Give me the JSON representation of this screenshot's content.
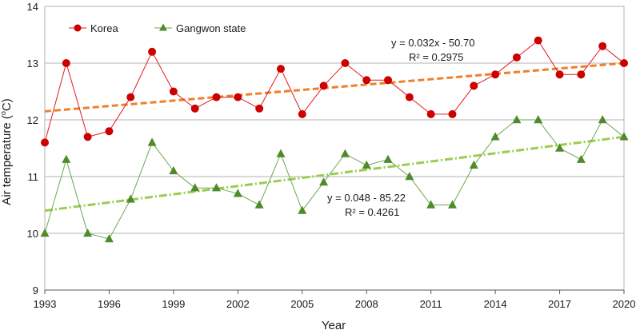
{
  "chart_data": {
    "type": "line",
    "xlabel": "Year",
    "ylabel": "Air temperature (",
    "ylabel_sup": "o",
    "ylabel_end": "C)",
    "xlim": [
      1993,
      2020
    ],
    "ylim": [
      9,
      14
    ],
    "xticks": [
      1993,
      1996,
      1999,
      2002,
      2005,
      2008,
      2011,
      2014,
      2017,
      2020
    ],
    "yticks": [
      9,
      10,
      11,
      12,
      13,
      14
    ],
    "grid": "horizontal",
    "legend_position": "top-left",
    "x": [
      1993,
      1994,
      1995,
      1996,
      1997,
      1998,
      1999,
      2000,
      2001,
      2002,
      2003,
      2004,
      2005,
      2006,
      2007,
      2008,
      2009,
      2010,
      2011,
      2012,
      2013,
      2014,
      2015,
      2016,
      2017,
      2018,
      2019,
      2020
    ],
    "series": [
      {
        "name": "Korea",
        "marker": "circle",
        "color": "#e31a1c",
        "marker_color": "#cc0000",
        "values": [
          11.6,
          13.0,
          11.7,
          11.8,
          12.4,
          13.2,
          12.5,
          12.2,
          12.4,
          12.4,
          12.2,
          12.9,
          12.1,
          12.6,
          13.0,
          12.7,
          12.7,
          12.4,
          12.1,
          12.1,
          12.6,
          12.8,
          13.1,
          13.4,
          12.8,
          12.8,
          13.3,
          13.0
        ],
        "trend": {
          "color": "#f07f2a",
          "style": "dashed",
          "start": [
            1993,
            12.15
          ],
          "end": [
            2020,
            13.0
          ],
          "equation": "y = 0.032x - 50.70",
          "r2": "R² = 0.2975"
        }
      },
      {
        "name": "Gangwon state",
        "marker": "triangle",
        "color": "#6aa84f",
        "marker_color": "#4f8a2b",
        "values": [
          10.0,
          11.3,
          10.0,
          9.9,
          10.6,
          11.6,
          11.1,
          10.8,
          10.8,
          10.7,
          10.5,
          11.4,
          10.4,
          10.9,
          11.4,
          11.2,
          11.3,
          11.0,
          10.5,
          10.5,
          11.2,
          11.7,
          12.0,
          12.0,
          11.5,
          11.3,
          12.0,
          11.7
        ],
        "trend": {
          "color": "#9acd4f",
          "style": "dash-dot",
          "start": [
            1993,
            10.4
          ],
          "end": [
            2020,
            11.7
          ],
          "equation": "y = 0.048 - 85.22",
          "r2": "R² = 0.4261"
        }
      }
    ]
  }
}
